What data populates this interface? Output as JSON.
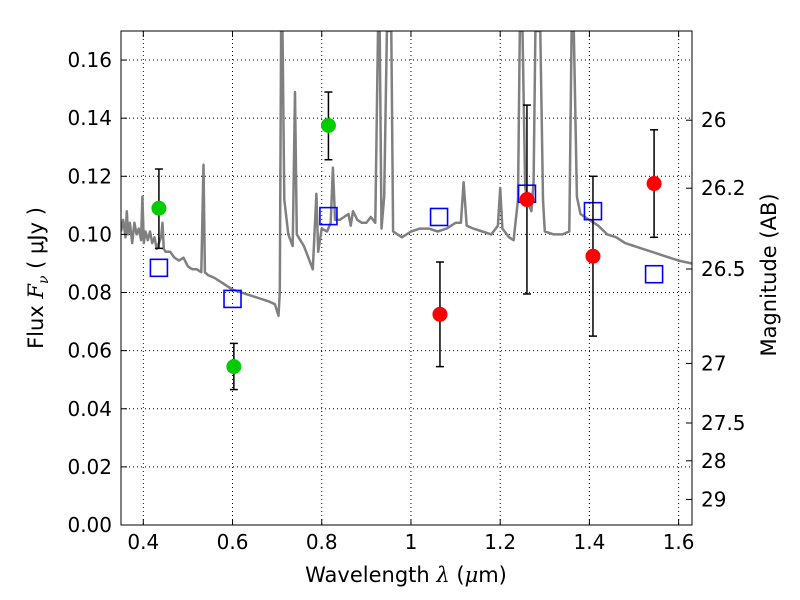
{
  "chart_data": {
    "type": "scatter",
    "xlabel": {
      "prefix": "Wavelength  ",
      "symbol": "λ",
      "unit_open": " (",
      "unit_mu": "μ",
      "unit_rest": "m)"
    },
    "ylabel": {
      "prefix": "Flux  ",
      "symbol": "F",
      "sub": "ν",
      "unit": "  ( μJy )"
    },
    "y2label": "Magnitude (AB)",
    "xlim": [
      0.35,
      1.63
    ],
    "ylim": [
      0.0,
      0.17
    ],
    "grid": true,
    "x_ticks": [
      {
        "value": 0.4,
        "label": "0.4"
      },
      {
        "value": 0.6,
        "label": "0.6"
      },
      {
        "value": 0.8,
        "label": "0.8"
      },
      {
        "value": 1.0,
        "label": "1"
      },
      {
        "value": 1.2,
        "label": "1.2"
      },
      {
        "value": 1.4,
        "label": "1.4"
      },
      {
        "value": 1.6,
        "label": "1.6"
      }
    ],
    "y_ticks": [
      {
        "value": 0.0,
        "label": "0.00"
      },
      {
        "value": 0.02,
        "label": "0.02"
      },
      {
        "value": 0.04,
        "label": "0.04"
      },
      {
        "value": 0.06,
        "label": "0.06"
      },
      {
        "value": 0.08,
        "label": "0.08"
      },
      {
        "value": 0.1,
        "label": "0.10"
      },
      {
        "value": 0.12,
        "label": "0.12"
      },
      {
        "value": 0.14,
        "label": "0.14"
      },
      {
        "value": 0.16,
        "label": "0.16"
      }
    ],
    "y2_ticks": [
      {
        "flux": 0.1393,
        "label": "26"
      },
      {
        "flux": 0.1159,
        "label": "26.2"
      },
      {
        "flux": 0.0881,
        "label": "26.5"
      },
      {
        "flux": 0.0556,
        "label": "27"
      },
      {
        "flux": 0.0351,
        "label": "27.5"
      },
      {
        "flux": 0.0221,
        "label": "28"
      },
      {
        "flux": 0.0088,
        "label": "29"
      }
    ],
    "series": [
      {
        "kind": "spectrum",
        "color": "#808080",
        "points": [
          [
            0.35,
            0.101
          ],
          [
            0.355,
            0.105
          ],
          [
            0.36,
            0.099
          ],
          [
            0.363,
            0.108
          ],
          [
            0.366,
            0.1
          ],
          [
            0.37,
            0.104
          ],
          [
            0.375,
            0.097
          ],
          [
            0.38,
            0.104
          ],
          [
            0.385,
            0.1
          ],
          [
            0.39,
            0.102
          ],
          [
            0.395,
            0.098
          ],
          [
            0.398,
            0.113
          ],
          [
            0.401,
            0.097
          ],
          [
            0.405,
            0.101
          ],
          [
            0.41,
            0.098
          ],
          [
            0.415,
            0.101
          ],
          [
            0.42,
            0.097
          ],
          [
            0.425,
            0.099
          ],
          [
            0.43,
            0.095
          ],
          [
            0.435,
            0.097
          ],
          [
            0.44,
            0.099
          ],
          [
            0.443,
            0.104
          ],
          [
            0.446,
            0.095
          ],
          [
            0.45,
            0.094
          ],
          [
            0.46,
            0.094
          ],
          [
            0.47,
            0.092
          ],
          [
            0.48,
            0.091
          ],
          [
            0.49,
            0.092
          ],
          [
            0.5,
            0.089
          ],
          [
            0.51,
            0.088
          ],
          [
            0.52,
            0.088
          ],
          [
            0.53,
            0.087
          ],
          [
            0.535,
            0.124
          ],
          [
            0.538,
            0.087
          ],
          [
            0.545,
            0.086
          ],
          [
            0.56,
            0.085
          ],
          [
            0.58,
            0.083
          ],
          [
            0.6,
            0.081
          ],
          [
            0.62,
            0.08
          ],
          [
            0.64,
            0.079
          ],
          [
            0.66,
            0.078
          ],
          [
            0.68,
            0.077
          ],
          [
            0.695,
            0.076
          ],
          [
            0.703,
            0.072
          ],
          [
            0.706,
            0.08
          ],
          [
            0.709,
            0.17
          ],
          [
            0.712,
            0.17
          ],
          [
            0.716,
            0.112
          ],
          [
            0.725,
            0.1
          ],
          [
            0.735,
            0.096
          ],
          [
            0.74,
            0.149
          ],
          [
            0.744,
            0.1
          ],
          [
            0.752,
            0.098
          ],
          [
            0.76,
            0.096
          ],
          [
            0.77,
            0.092
          ],
          [
            0.78,
            0.088
          ],
          [
            0.788,
            0.114
          ],
          [
            0.792,
            0.094
          ],
          [
            0.8,
            0.102
          ],
          [
            0.812,
            0.101
          ],
          [
            0.82,
            0.104
          ],
          [
            0.825,
            0.123
          ],
          [
            0.83,
            0.105
          ],
          [
            0.84,
            0.105
          ],
          [
            0.85,
            0.106
          ],
          [
            0.86,
            0.107
          ],
          [
            0.865,
            0.103
          ],
          [
            0.87,
            0.108
          ],
          [
            0.88,
            0.105
          ],
          [
            0.89,
            0.104
          ],
          [
            0.9,
            0.104
          ],
          [
            0.91,
            0.106
          ],
          [
            0.92,
            0.104
          ],
          [
            0.926,
            0.17
          ],
          [
            0.93,
            0.17
          ],
          [
            0.934,
            0.102
          ],
          [
            0.94,
            0.113
          ],
          [
            0.946,
            0.17
          ],
          [
            0.95,
            0.17
          ],
          [
            0.956,
            0.17
          ],
          [
            0.96,
            0.101
          ],
          [
            0.97,
            0.1
          ],
          [
            0.98,
            0.099
          ],
          [
            1.0,
            0.101
          ],
          [
            1.02,
            0.102
          ],
          [
            1.04,
            0.102
          ],
          [
            1.06,
            0.101
          ],
          [
            1.08,
            0.102
          ],
          [
            1.1,
            0.104
          ],
          [
            1.112,
            0.104
          ],
          [
            1.118,
            0.118
          ],
          [
            1.125,
            0.103
          ],
          [
            1.14,
            0.102
          ],
          [
            1.16,
            0.101
          ],
          [
            1.18,
            0.1
          ],
          [
            1.195,
            0.103
          ],
          [
            1.2,
            0.116
          ],
          [
            1.205,
            0.102
          ],
          [
            1.22,
            0.099
          ],
          [
            1.23,
            0.098
          ],
          [
            1.24,
            0.112
          ],
          [
            1.244,
            0.17
          ],
          [
            1.25,
            0.17
          ],
          [
            1.256,
            0.116
          ],
          [
            1.262,
            0.111
          ],
          [
            1.27,
            0.108
          ],
          [
            1.275,
            0.118
          ],
          [
            1.279,
            0.17
          ],
          [
            1.284,
            0.17
          ],
          [
            1.29,
            0.17
          ],
          [
            1.296,
            0.112
          ],
          [
            1.3,
            0.101
          ],
          [
            1.32,
            0.1
          ],
          [
            1.34,
            0.1
          ],
          [
            1.355,
            0.101
          ],
          [
            1.36,
            0.17
          ],
          [
            1.365,
            0.17
          ],
          [
            1.372,
            0.113
          ],
          [
            1.38,
            0.107
          ],
          [
            1.39,
            0.106
          ],
          [
            1.4,
            0.105
          ],
          [
            1.42,
            0.103
          ],
          [
            1.44,
            0.1
          ],
          [
            1.46,
            0.099
          ],
          [
            1.48,
            0.097
          ],
          [
            1.5,
            0.096
          ],
          [
            1.52,
            0.095
          ],
          [
            1.54,
            0.094
          ],
          [
            1.56,
            0.093
          ],
          [
            1.58,
            0.092
          ],
          [
            1.6,
            0.091
          ],
          [
            1.63,
            0.09
          ]
        ]
      },
      {
        "kind": "squares",
        "color": "#0000ff",
        "points": [
          [
            0.435,
            0.0885
          ],
          [
            0.6,
            0.0778
          ],
          [
            0.815,
            0.1063
          ],
          [
            1.063,
            0.106
          ],
          [
            1.26,
            0.114
          ],
          [
            1.408,
            0.108
          ],
          [
            1.545,
            0.0863
          ]
        ]
      },
      {
        "kind": "circles-errorbars",
        "color": "#00cc00",
        "points": [
          {
            "x": 0.435,
            "y": 0.109,
            "lo": 0.0952,
            "hi": 0.1225
          },
          {
            "x": 0.603,
            "y": 0.0545,
            "lo": 0.0466,
            "hi": 0.0625
          },
          {
            "x": 0.815,
            "y": 0.1375,
            "lo": 0.1257,
            "hi": 0.149
          }
        ]
      },
      {
        "kind": "circles-errorbars",
        "color": "#ff0000",
        "points": [
          {
            "x": 1.065,
            "y": 0.0725,
            "lo": 0.0545,
            "hi": 0.0905
          },
          {
            "x": 1.26,
            "y": 0.112,
            "lo": 0.0795,
            "hi": 0.1445
          },
          {
            "x": 1.408,
            "y": 0.0925,
            "lo": 0.065,
            "hi": 0.12
          },
          {
            "x": 1.545,
            "y": 0.1175,
            "lo": 0.099,
            "hi": 0.136
          }
        ]
      }
    ]
  }
}
